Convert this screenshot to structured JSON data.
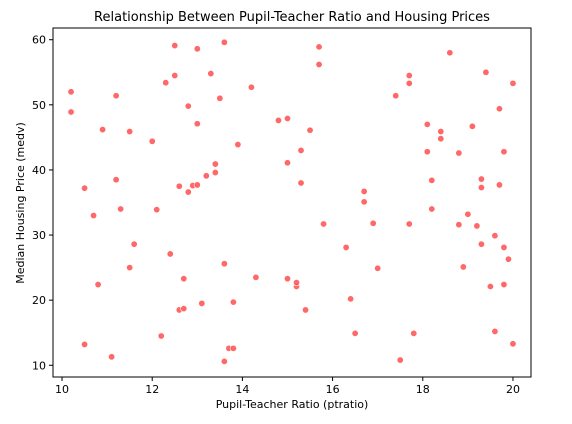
{
  "chart_data": {
    "type": "scatter",
    "title": "Relationship Between Pupil-Teacher Ratio and Housing Prices",
    "xlabel": "Pupil-Teacher Ratio (ptratio)",
    "ylabel": "Median Housing Price (medv)",
    "xlim": [
      9.8,
      20.4
    ],
    "ylim": [
      8.2,
      61.8
    ],
    "xticks": [
      10,
      12,
      14,
      16,
      18,
      20
    ],
    "yticks": [
      10,
      20,
      30,
      40,
      50,
      60
    ],
    "grid": false,
    "marker_color": "#ff4d4d",
    "points": [
      {
        "x": 10.2,
        "y": 52.0
      },
      {
        "x": 10.2,
        "y": 48.9
      },
      {
        "x": 10.5,
        "y": 37.2
      },
      {
        "x": 10.5,
        "y": 13.2
      },
      {
        "x": 10.7,
        "y": 33.0
      },
      {
        "x": 10.8,
        "y": 22.4
      },
      {
        "x": 10.9,
        "y": 46.2
      },
      {
        "x": 11.1,
        "y": 11.3
      },
      {
        "x": 11.2,
        "y": 38.5
      },
      {
        "x": 11.2,
        "y": 51.4
      },
      {
        "x": 11.3,
        "y": 34.0
      },
      {
        "x": 11.5,
        "y": 25.0
      },
      {
        "x": 11.5,
        "y": 45.9
      },
      {
        "x": 11.6,
        "y": 28.6
      },
      {
        "x": 12.0,
        "y": 44.4
      },
      {
        "x": 12.1,
        "y": 33.9
      },
      {
        "x": 12.2,
        "y": 14.5
      },
      {
        "x": 12.3,
        "y": 53.4
      },
      {
        "x": 12.4,
        "y": 27.1
      },
      {
        "x": 12.5,
        "y": 59.1
      },
      {
        "x": 12.5,
        "y": 54.5
      },
      {
        "x": 12.6,
        "y": 18.5
      },
      {
        "x": 12.6,
        "y": 37.5
      },
      {
        "x": 12.7,
        "y": 23.3
      },
      {
        "x": 12.7,
        "y": 18.7
      },
      {
        "x": 12.8,
        "y": 49.8
      },
      {
        "x": 12.8,
        "y": 36.6
      },
      {
        "x": 12.9,
        "y": 37.6
      },
      {
        "x": 13.0,
        "y": 47.1
      },
      {
        "x": 13.0,
        "y": 37.7
      },
      {
        "x": 13.0,
        "y": 58.6
      },
      {
        "x": 13.1,
        "y": 19.5
      },
      {
        "x": 13.2,
        "y": 39.1
      },
      {
        "x": 13.3,
        "y": 54.8
      },
      {
        "x": 13.4,
        "y": 39.6
      },
      {
        "x": 13.4,
        "y": 40.9
      },
      {
        "x": 13.5,
        "y": 51.0
      },
      {
        "x": 13.6,
        "y": 10.6
      },
      {
        "x": 13.6,
        "y": 59.6
      },
      {
        "x": 13.6,
        "y": 25.6
      },
      {
        "x": 13.7,
        "y": 12.6
      },
      {
        "x": 13.8,
        "y": 12.6
      },
      {
        "x": 13.8,
        "y": 19.7
      },
      {
        "x": 13.9,
        "y": 43.9
      },
      {
        "x": 14.2,
        "y": 52.7
      },
      {
        "x": 14.3,
        "y": 23.5
      },
      {
        "x": 14.8,
        "y": 47.6
      },
      {
        "x": 15.0,
        "y": 23.3
      },
      {
        "x": 15.0,
        "y": 47.9
      },
      {
        "x": 15.0,
        "y": 41.1
      },
      {
        "x": 15.2,
        "y": 22.1
      },
      {
        "x": 15.2,
        "y": 22.7
      },
      {
        "x": 15.3,
        "y": 38.0
      },
      {
        "x": 15.3,
        "y": 43.0
      },
      {
        "x": 15.4,
        "y": 18.5
      },
      {
        "x": 15.5,
        "y": 46.1
      },
      {
        "x": 15.7,
        "y": 58.9
      },
      {
        "x": 15.7,
        "y": 56.2
      },
      {
        "x": 15.8,
        "y": 31.7
      },
      {
        "x": 16.3,
        "y": 28.1
      },
      {
        "x": 16.4,
        "y": 20.2
      },
      {
        "x": 16.5,
        "y": 14.9
      },
      {
        "x": 16.7,
        "y": 36.7
      },
      {
        "x": 16.7,
        "y": 35.1
      },
      {
        "x": 16.9,
        "y": 31.8
      },
      {
        "x": 17.0,
        "y": 24.9
      },
      {
        "x": 17.4,
        "y": 51.4
      },
      {
        "x": 17.5,
        "y": 10.8
      },
      {
        "x": 17.7,
        "y": 54.5
      },
      {
        "x": 17.7,
        "y": 53.3
      },
      {
        "x": 17.7,
        "y": 31.7
      },
      {
        "x": 17.8,
        "y": 14.9
      },
      {
        "x": 18.1,
        "y": 47.0
      },
      {
        "x": 18.1,
        "y": 42.8
      },
      {
        "x": 18.2,
        "y": 38.4
      },
      {
        "x": 18.2,
        "y": 34.0
      },
      {
        "x": 18.4,
        "y": 45.9
      },
      {
        "x": 18.4,
        "y": 44.8
      },
      {
        "x": 18.6,
        "y": 58.0
      },
      {
        "x": 18.8,
        "y": 42.6
      },
      {
        "x": 18.8,
        "y": 31.6
      },
      {
        "x": 18.9,
        "y": 25.1
      },
      {
        "x": 19.0,
        "y": 33.2
      },
      {
        "x": 19.1,
        "y": 46.7
      },
      {
        "x": 19.2,
        "y": 31.4
      },
      {
        "x": 19.3,
        "y": 38.6
      },
      {
        "x": 19.3,
        "y": 37.3
      },
      {
        "x": 19.3,
        "y": 28.6
      },
      {
        "x": 19.4,
        "y": 55.0
      },
      {
        "x": 19.5,
        "y": 22.1
      },
      {
        "x": 19.6,
        "y": 29.9
      },
      {
        "x": 19.6,
        "y": 15.2
      },
      {
        "x": 19.7,
        "y": 49.4
      },
      {
        "x": 19.7,
        "y": 37.7
      },
      {
        "x": 19.8,
        "y": 42.8
      },
      {
        "x": 19.8,
        "y": 28.1
      },
      {
        "x": 19.8,
        "y": 22.4
      },
      {
        "x": 19.9,
        "y": 26.3
      },
      {
        "x": 20.0,
        "y": 53.3
      },
      {
        "x": 20.0,
        "y": 13.3
      }
    ]
  }
}
